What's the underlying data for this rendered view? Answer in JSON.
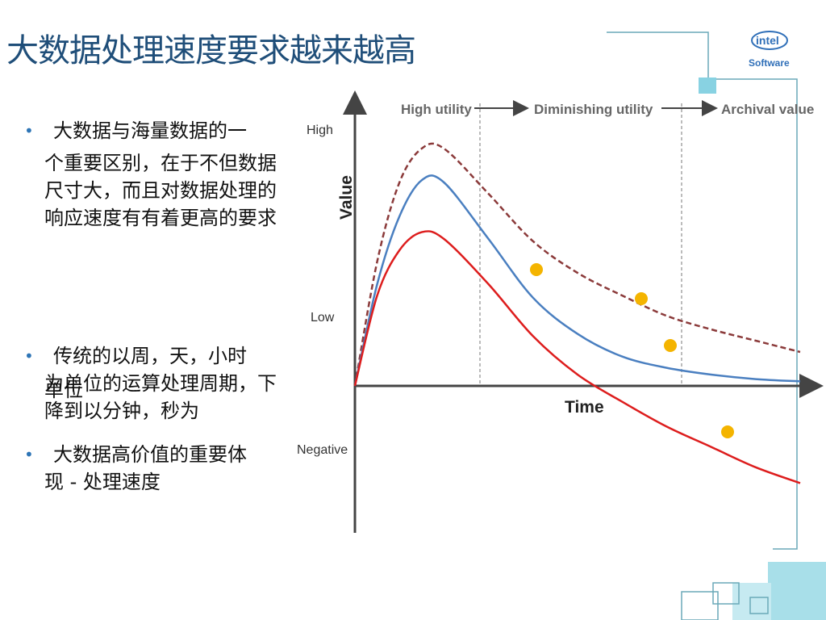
{
  "slide": {
    "title": "大数据处理速度要求越来越高",
    "bullets": [
      {
        "line1": "大数据与海量数据的一",
        "rest": "个重要区别，在于不但数据尺寸大，而且对数据处理的响应速度有有着更高的要求"
      },
      {
        "line1": "传统的以周，天，小时",
        "rest": "为单位的运算处理周期，下降到以分钟，秒为",
        "overlap": "单位"
      },
      {
        "line1": "大数据高价值的重要体",
        "rest": "现 - 处理速度"
      }
    ]
  },
  "logo": {
    "brand": "intel",
    "product": "Software"
  },
  "chart_data": {
    "type": "line",
    "x_label": "Time",
    "y_label": "Value",
    "y_tick_labels": [
      "High",
      "Low",
      "Negative"
    ],
    "phases": [
      "High utility",
      "Diminishing utility",
      "Archival value"
    ],
    "x": [
      0,
      0.05,
      0.1,
      0.15,
      0.2,
      0.3,
      0.4,
      0.5,
      0.6,
      0.7,
      0.8,
      0.9,
      1.0
    ],
    "series": [
      {
        "style": "dashed",
        "color": "#8b3a3a",
        "values": [
          0,
          0.55,
          0.9,
          1.05,
          1.05,
          0.85,
          0.64,
          0.5,
          0.4,
          0.31,
          0.25,
          0.2,
          0.15
        ]
      },
      {
        "style": "solid",
        "color": "#4a7fc0",
        "values": [
          0,
          0.45,
          0.75,
          0.91,
          0.9,
          0.65,
          0.39,
          0.23,
          0.13,
          0.08,
          0.05,
          0.03,
          0.02
        ]
      },
      {
        "style": "solid",
        "color": "#dd1d1d",
        "values": [
          0,
          0.4,
          0.6,
          0.68,
          0.65,
          0.45,
          0.22,
          0.05,
          -0.07,
          -0.18,
          -0.27,
          -0.36,
          -0.43
        ]
      }
    ],
    "markers": {
      "color": "#f4b400",
      "count": 4
    },
    "colors": {
      "axis": "#444444",
      "title": "#1f4e79",
      "bullet": "#2e75b6",
      "decor": "#6cc5d8"
    }
  }
}
